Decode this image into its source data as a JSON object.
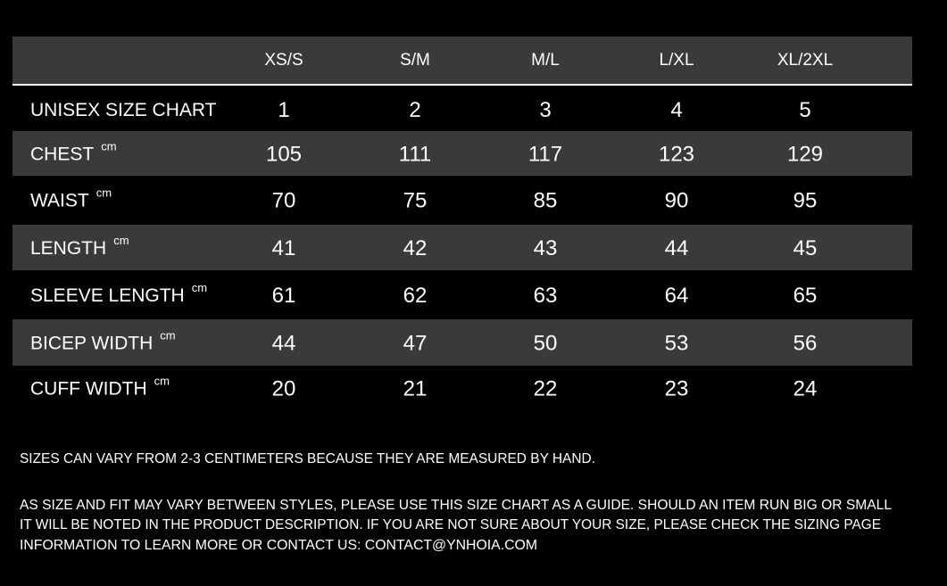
{
  "header": {
    "columns": [
      "XS/S",
      "S/M",
      "M/L",
      "L/XL",
      "XL/2XL"
    ]
  },
  "table": {
    "rows": [
      {
        "label": "UNISEX SIZE CHART",
        "values": [
          1,
          2,
          3,
          4,
          5
        ]
      },
      {
        "label": "CHEST",
        "unit": "cm",
        "values": [
          105,
          111,
          117,
          123,
          129
        ]
      },
      {
        "label": "WAIST",
        "unit": "cm",
        "values": [
          70,
          75,
          85,
          90,
          95
        ]
      },
      {
        "label": "LENGTH",
        "unit": "cm",
        "values": [
          41,
          42,
          43,
          44,
          45
        ]
      },
      {
        "label": "SLEEVE LENGTH",
        "unit": "cm",
        "values": [
          61,
          62,
          63,
          64,
          65
        ]
      },
      {
        "label": "BICEP WIDTH",
        "unit": "cm",
        "values": [
          44,
          47,
          50,
          53,
          56
        ]
      },
      {
        "label": "CUFF WIDTH",
        "unit": "cm",
        "values": [
          20,
          21,
          22,
          23,
          24
        ]
      }
    ]
  },
  "notes": [
    "SIZES CAN VARY FROM 2-3 CENTIMETERS BECAUSE THEY ARE MEASURED BY HAND.",
    "AS SIZE AND FIT MAY VARY BETWEEN STYLES, PLEASE USE THIS SIZE CHART AS A GUIDE. SHOULD AN ITEM RUN BIG OR SMALL",
    "IT WILL BE NOTED IN THE PRODUCT DESCRIPTION. IF YOU ARE NOT SURE ABOUT YOUR SIZE, PLEASE CHECK THE SIZING PAGE",
    "INFORMATION TO LEARN MORE OR CONTACT US: CONTACT@YNHOIA.COM"
  ]
}
